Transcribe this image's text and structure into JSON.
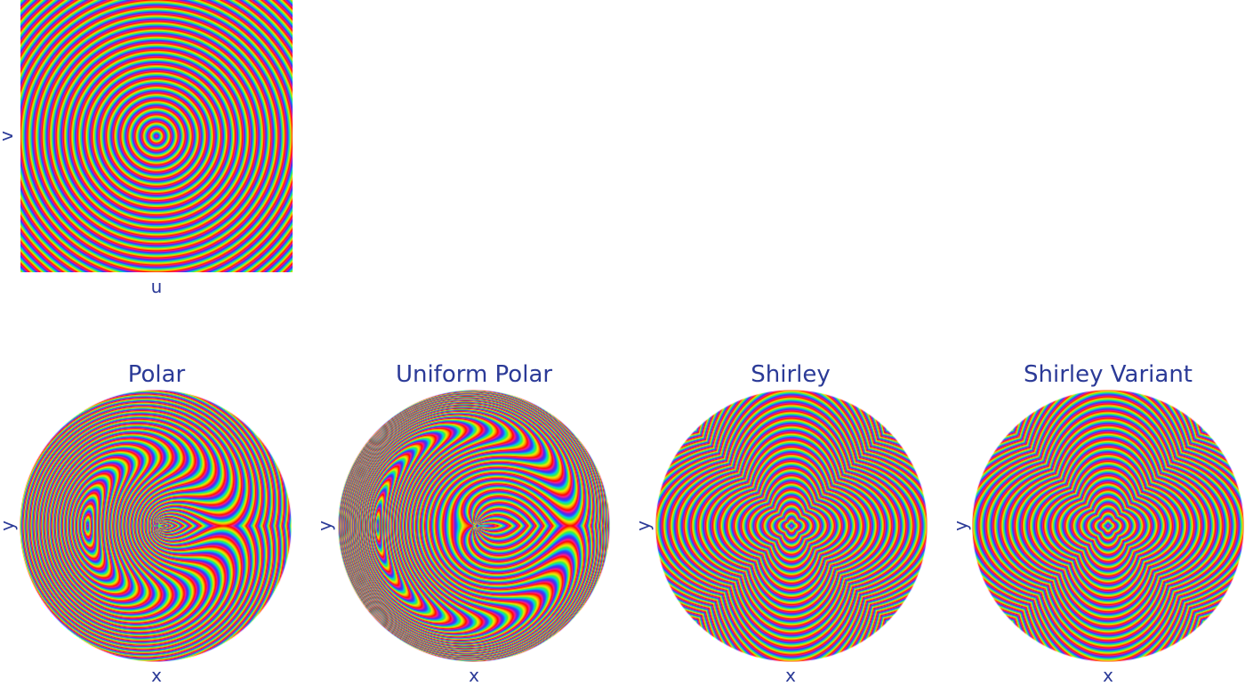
{
  "figure": {
    "top_panel": {
      "x_label": "u",
      "y_label": "v"
    },
    "panels": [
      {
        "title": "Polar",
        "x_label": "x",
        "y_label": "y"
      },
      {
        "title": "Uniform Polar",
        "x_label": "x",
        "y_label": "y"
      },
      {
        "title": "Shirley",
        "x_label": "x",
        "y_label": "y"
      },
      {
        "title": "Shirley Variant",
        "x_label": "x",
        "y_label": "y"
      }
    ],
    "colormap": [
      "#ff0000",
      "#ff1f8f",
      "#6a1fe0",
      "#2a4bff",
      "#00d1e0",
      "#3cf23c",
      "#f0f000",
      "#ff8a00"
    ],
    "label_color": "#2b3a97"
  }
}
